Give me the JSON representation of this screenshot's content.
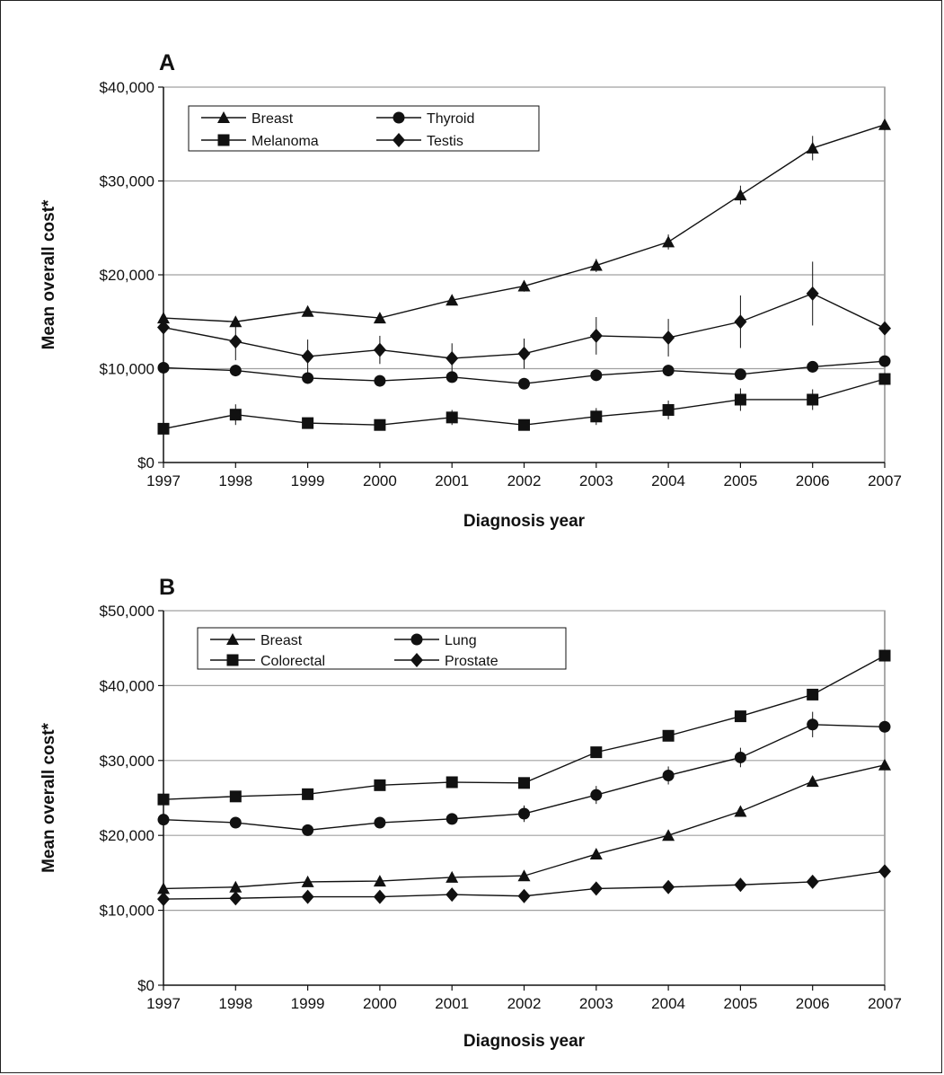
{
  "chart_data": [
    {
      "type": "line",
      "panel_label": "A",
      "xlabel": "Diagnosis year",
      "ylabel": "Mean overall cost*",
      "ylim": [
        0,
        40000
      ],
      "y_ticks": [
        0,
        10000,
        20000,
        30000,
        40000
      ],
      "y_tick_labels": [
        "$0",
        "$10,000",
        "$20,000",
        "$30,000",
        "$40,000"
      ],
      "categories": [
        "1997",
        "1998",
        "1999",
        "2000",
        "2001",
        "2002",
        "2003",
        "2004",
        "2005",
        "2006",
        "2007"
      ],
      "grid": "horizontal",
      "legend_position": "top-left",
      "series": [
        {
          "name": "Breast",
          "marker": "triangle",
          "values": [
            15400,
            15000,
            16100,
            15400,
            17300,
            18800,
            21000,
            23500,
            28500,
            33500,
            36000
          ],
          "errors": [
            500,
            500,
            500,
            500,
            500,
            600,
            700,
            800,
            1000,
            1300,
            600
          ]
        },
        {
          "name": "Thyroid",
          "marker": "circle",
          "values": [
            10100,
            9800,
            9000,
            8700,
            9100,
            8400,
            9300,
            9800,
            9400,
            10200,
            10800
          ],
          "errors": [
            600,
            600,
            500,
            500,
            500,
            500,
            500,
            600,
            600,
            600,
            500
          ]
        },
        {
          "name": "Melanoma",
          "marker": "square",
          "values": [
            3600,
            5100,
            4200,
            4000,
            4800,
            4000,
            4900,
            5600,
            6700,
            6700,
            8900
          ],
          "errors": [
            400,
            1100,
            500,
            400,
            800,
            500,
            900,
            1000,
            1200,
            1100,
            500
          ]
        },
        {
          "name": "Testis",
          "marker": "diamond",
          "values": [
            14400,
            12900,
            11300,
            12000,
            11100,
            11600,
            13500,
            13300,
            15000,
            18000,
            14300
          ],
          "errors": [
            700,
            2000,
            1800,
            1500,
            1600,
            1600,
            2000,
            2000,
            2800,
            3400,
            600
          ]
        }
      ]
    },
    {
      "type": "line",
      "panel_label": "B",
      "xlabel": "Diagnosis year",
      "ylabel": "Mean overall cost*",
      "ylim": [
        0,
        50000
      ],
      "y_ticks": [
        0,
        10000,
        20000,
        30000,
        40000,
        50000
      ],
      "y_tick_labels": [
        "$0",
        "$10,000",
        "$20,000",
        "$30,000",
        "$40,000",
        "$50,000"
      ],
      "categories": [
        "1997",
        "1998",
        "1999",
        "2000",
        "2001",
        "2002",
        "2003",
        "2004",
        "2005",
        "2006",
        "2007"
      ],
      "grid": "horizontal",
      "legend_position": "top-left",
      "series": [
        {
          "name": "Breast",
          "marker": "triangle",
          "values": [
            12900,
            13100,
            13800,
            13900,
            14400,
            14600,
            17500,
            20000,
            23200,
            27200,
            29400
          ],
          "errors": [
            300,
            300,
            300,
            300,
            300,
            300,
            400,
            500,
            500,
            600,
            300
          ]
        },
        {
          "name": "Lung",
          "marker": "circle",
          "values": [
            22100,
            21700,
            20700,
            21700,
            22200,
            22900,
            25400,
            28000,
            30400,
            34800,
            34500
          ],
          "errors": [
            500,
            600,
            500,
            600,
            600,
            1100,
            1200,
            1200,
            1300,
            1700,
            500
          ]
        },
        {
          "name": "Colorectal",
          "marker": "square",
          "values": [
            24800,
            25200,
            25500,
            26700,
            27100,
            27000,
            31100,
            33300,
            35900,
            38800,
            44000
          ],
          "errors": [
            400,
            400,
            400,
            400,
            400,
            500,
            500,
            500,
            600,
            600,
            500
          ]
        },
        {
          "name": "Prostate",
          "marker": "diamond",
          "values": [
            11500,
            11600,
            11800,
            11800,
            12100,
            11900,
            12900,
            13100,
            13400,
            13800,
            15200
          ],
          "errors": [
            200,
            200,
            200,
            200,
            200,
            200,
            200,
            200,
            200,
            200,
            200
          ]
        }
      ]
    }
  ]
}
